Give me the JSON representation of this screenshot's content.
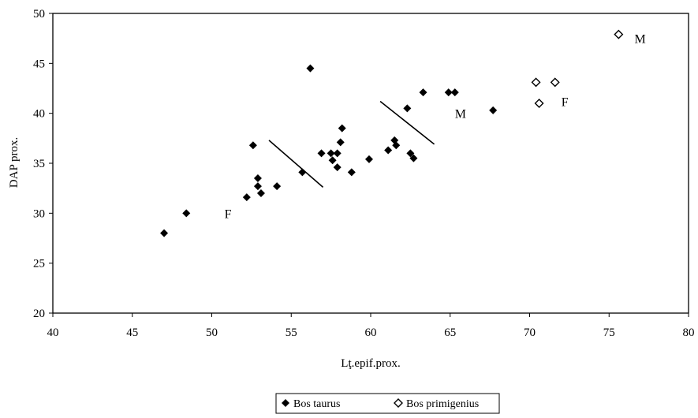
{
  "chart_data": {
    "type": "scatter",
    "title": "",
    "xlabel": "Lţ.epif.prox.",
    "ylabel": "DAP prox.",
    "xlim": [
      40,
      80
    ],
    "ylim": [
      20,
      50
    ],
    "xticks": [
      "40",
      "45",
      "50",
      "55",
      "60",
      "65",
      "70",
      "75",
      "80"
    ],
    "yticks": [
      "20",
      "25",
      "30",
      "35",
      "40",
      "45",
      "50"
    ],
    "grid": false,
    "legend_position": "bottom",
    "series": [
      {
        "name": "Bos taurus",
        "marker": "filled-diamond",
        "color": "#000000",
        "points": [
          [
            47.0,
            28.0
          ],
          [
            48.4,
            30.0
          ],
          [
            52.2,
            31.6
          ],
          [
            52.6,
            36.8
          ],
          [
            52.9,
            33.5
          ],
          [
            52.9,
            32.7
          ],
          [
            53.1,
            32.0
          ],
          [
            54.1,
            32.7
          ],
          [
            55.7,
            34.1
          ],
          [
            56.2,
            44.5
          ],
          [
            56.9,
            36.0
          ],
          [
            57.5,
            36.0
          ],
          [
            57.6,
            35.3
          ],
          [
            57.9,
            36.0
          ],
          [
            57.9,
            34.6
          ],
          [
            58.1,
            37.1
          ],
          [
            58.2,
            38.5
          ],
          [
            58.8,
            34.1
          ],
          [
            59.9,
            35.4
          ],
          [
            61.1,
            36.3
          ],
          [
            61.5,
            37.3
          ],
          [
            61.6,
            36.8
          ],
          [
            62.3,
            40.5
          ],
          [
            62.5,
            36.0
          ],
          [
            62.7,
            35.5
          ],
          [
            63.3,
            42.1
          ],
          [
            64.9,
            42.1
          ],
          [
            65.3,
            42.1
          ],
          [
            67.7,
            40.3
          ]
        ]
      },
      {
        "name": "Bos primigenius",
        "marker": "open-diamond",
        "color": "#000000",
        "points": [
          [
            70.4,
            43.1
          ],
          [
            70.6,
            41.0
          ],
          [
            71.6,
            43.1
          ],
          [
            75.6,
            47.9
          ]
        ]
      }
    ],
    "separator_lines": [
      {
        "from": [
          53.6,
          37.3
        ],
        "to": [
          57.0,
          32.6
        ]
      },
      {
        "from": [
          60.6,
          41.2
        ],
        "to": [
          64.0,
          36.9
        ]
      }
    ],
    "annotations": [
      {
        "text": "F",
        "x": 50.8,
        "y": 30.0
      },
      {
        "text": "M",
        "x": 65.3,
        "y": 40.0
      },
      {
        "text": "F",
        "x": 72.0,
        "y": 41.2
      },
      {
        "text": "M",
        "x": 76.6,
        "y": 47.5
      }
    ],
    "legend": [
      "Bos taurus",
      "Bos primigenius"
    ]
  }
}
